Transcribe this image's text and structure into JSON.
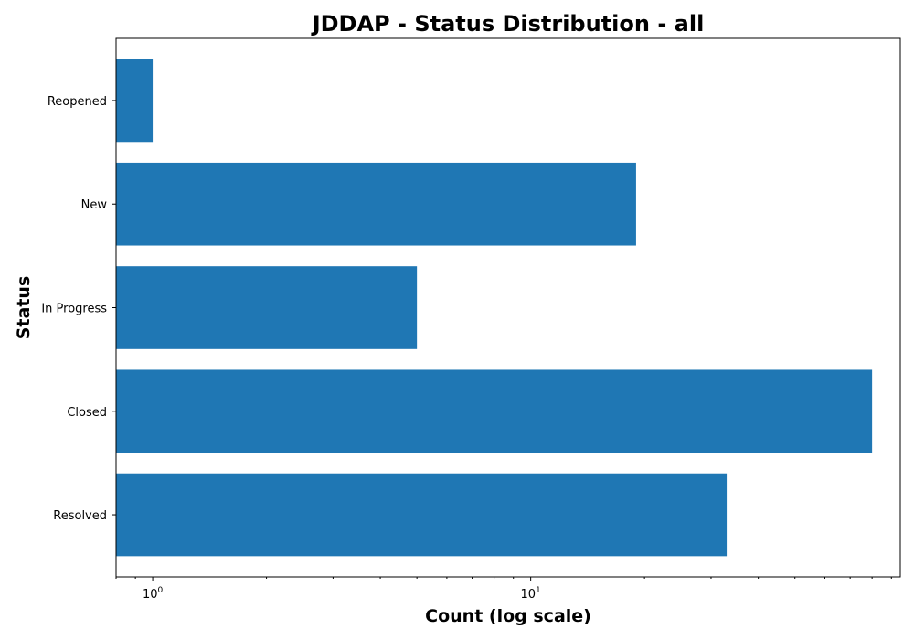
{
  "chart_data": {
    "type": "bar",
    "orientation": "horizontal",
    "title": "JDDAP - Status Distribution - all",
    "xlabel": "Count (log scale)",
    "ylabel": "Status",
    "x_scale": "log",
    "xlim": [
      0.8,
      95
    ],
    "categories": [
      "Resolved",
      "Closed",
      "In Progress",
      "New",
      "Reopened"
    ],
    "values": [
      33,
      80,
      5,
      19,
      1
    ],
    "color": "#1f77b4",
    "x_major_ticks": [
      {
        "value": 1,
        "base": "10",
        "exponent": "0"
      },
      {
        "value": 10,
        "base": "10",
        "exponent": "1"
      }
    ],
    "grid": false
  }
}
